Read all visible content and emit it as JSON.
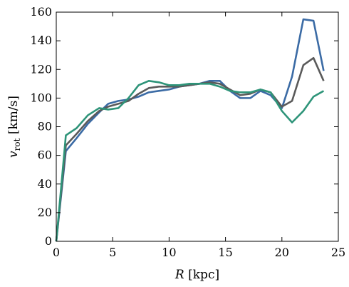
{
  "chart_data": {
    "type": "line",
    "xlabel": "R [kpc]",
    "ylabel": "v_rot [km/s]",
    "xlim": [
      0,
      25
    ],
    "ylim": [
      0,
      160
    ],
    "x_ticks": [
      0,
      5,
      10,
      15,
      20,
      25
    ],
    "y_ticks": [
      0,
      20,
      40,
      60,
      80,
      100,
      120,
      140,
      160
    ],
    "x_tick_labels": [
      "0",
      "5",
      "10",
      "15",
      "20",
      "25"
    ],
    "y_tick_labels": [
      "0",
      "20",
      "40",
      "60",
      "80",
      "100",
      "120",
      "140",
      "160"
    ],
    "grid": false,
    "series": [
      {
        "color": "#3b6ba5",
        "x": [
          0,
          0.85,
          1.8,
          2.8,
          3.8,
          4.6,
          5.5,
          6.4,
          7.3,
          8.2,
          9.1,
          10.0,
          10.9,
          11.8,
          12.7,
          13.6,
          14.5,
          15.4,
          16.3,
          17.2,
          18.1,
          19.0,
          20.0,
          20.9,
          21.9,
          22.8,
          23.7
        ],
        "y": [
          0,
          63,
          72,
          82,
          90,
          96,
          98,
          99,
          101,
          104,
          105,
          106,
          108,
          109,
          110,
          112,
          112,
          105,
          100,
          100,
          105,
          102,
          93,
          115,
          155,
          154,
          119
        ]
      },
      {
        "color": "#5a5a5a",
        "x": [
          0,
          0.85,
          1.8,
          2.8,
          3.8,
          4.6,
          5.5,
          6.4,
          7.3,
          8.2,
          9.1,
          10.0,
          10.9,
          11.8,
          12.7,
          13.6,
          14.5,
          15.4,
          16.3,
          17.2,
          18.1,
          19.0,
          20.0,
          20.9,
          21.9,
          22.8,
          23.7
        ],
        "y": [
          0,
          67,
          75,
          84,
          91,
          94,
          96,
          98,
          103,
          107,
          108,
          108,
          108,
          109,
          110,
          111,
          110,
          106,
          102,
          103,
          106,
          104,
          94,
          98,
          123,
          128,
          112
        ]
      },
      {
        "color": "#2e9479",
        "x": [
          0,
          0.85,
          1.8,
          2.8,
          3.8,
          4.6,
          5.5,
          6.4,
          7.3,
          8.2,
          9.1,
          10.0,
          10.9,
          11.8,
          12.7,
          13.6,
          14.5,
          15.4,
          16.3,
          17.2,
          18.1,
          19.0,
          20.0,
          20.9,
          21.9,
          22.8,
          23.7
        ],
        "y": [
          0,
          74,
          79,
          88,
          93,
          92,
          93,
          100,
          109,
          112,
          111,
          109,
          109,
          110,
          110,
          110,
          108,
          105,
          104,
          104,
          106,
          104,
          91,
          83,
          91,
          101,
          105
        ]
      }
    ]
  }
}
